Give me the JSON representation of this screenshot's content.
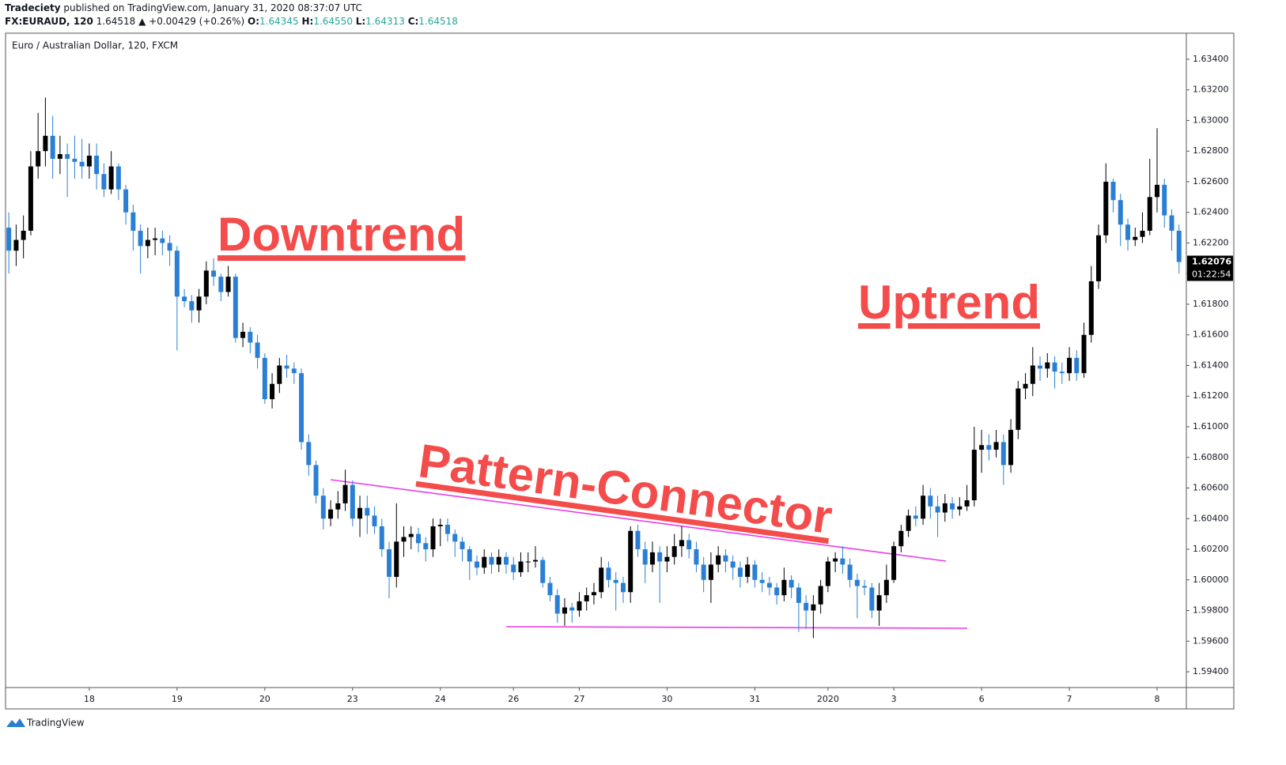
{
  "header": {
    "publisher": "Tradeciety",
    "published_text": "published on TradingView.com, January 31, 2020 08:37:07 UTC",
    "symbol": "FX:EURAUD, 120",
    "last": "1.64518",
    "change": "▲ +0.00429 (+0.26%)",
    "o_label": "O:",
    "o_value": "1.64345",
    "h_label": "H:",
    "h_value": "1.64550",
    "l_label": "L:",
    "l_value": "1.64313",
    "c_label": "C:",
    "c_value": "1.64518"
  },
  "footer": {
    "brand": "TradingView"
  },
  "annotations": {
    "downtrend": "Downtrend",
    "uptrend": "Uptrend",
    "connector": "Pattern-Connector"
  },
  "chart_data": {
    "type": "candlestick",
    "title": "Euro / Australian Dollar, 120, FXCM",
    "up_color": "#000000",
    "down_color": "#2a7fd4",
    "grid": false,
    "last_price_label": "1.62076",
    "countdown": "01:22:54",
    "xlim": [
      -0.45,
      161.0
    ],
    "xticks": [
      {
        "value": 11,
        "label": "18"
      },
      {
        "value": 23,
        "label": "19"
      },
      {
        "value": 35,
        "label": "20"
      },
      {
        "value": 47,
        "label": "23"
      },
      {
        "value": 59,
        "label": "24"
      },
      {
        "value": 69,
        "label": "26"
      },
      {
        "value": 78,
        "label": "27"
      },
      {
        "value": 90,
        "label": "30"
      },
      {
        "value": 102,
        "label": "31"
      },
      {
        "value": 112,
        "label": "2020"
      },
      {
        "value": 121,
        "label": "3"
      },
      {
        "value": 133,
        "label": "6"
      },
      {
        "value": 145,
        "label": "7"
      },
      {
        "value": 157,
        "label": "8"
      }
    ],
    "ylim": [
      1.59297,
      1.6357
    ],
    "yticks": [
      {
        "value": 1.594,
        "label": "1.59400"
      },
      {
        "value": 1.596,
        "label": "1.59600"
      },
      {
        "value": 1.598,
        "label": "1.59800"
      },
      {
        "value": 1.6,
        "label": "1.60000"
      },
      {
        "value": 1.602,
        "label": "1.60200"
      },
      {
        "value": 1.604,
        "label": "1.60400"
      },
      {
        "value": 1.606,
        "label": "1.60600"
      },
      {
        "value": 1.608,
        "label": "1.60800"
      },
      {
        "value": 1.61,
        "label": "1.61000"
      },
      {
        "value": 1.612,
        "label": "1.61200"
      },
      {
        "value": 1.614,
        "label": "1.61400"
      },
      {
        "value": 1.616,
        "label": "1.61600"
      },
      {
        "value": 1.618,
        "label": "1.61800"
      },
      {
        "value": 1.62,
        "label": "1.62000"
      },
      {
        "value": 1.622,
        "label": "1.62200"
      },
      {
        "value": 1.624,
        "label": "1.62400"
      },
      {
        "value": 1.626,
        "label": "1.62600"
      },
      {
        "value": 1.628,
        "label": "1.62800"
      },
      {
        "value": 1.63,
        "label": "1.63000"
      },
      {
        "value": 1.632,
        "label": "1.63200"
      },
      {
        "value": 1.634,
        "label": "1.63400"
      }
    ],
    "ohlc": [
      [
        1.623,
        1.624,
        1.62,
        1.6215
      ],
      [
        1.6215,
        1.6232,
        1.6205,
        1.6222
      ],
      [
        1.6222,
        1.6238,
        1.621,
        1.6228
      ],
      [
        1.6228,
        1.628,
        1.6225,
        1.627
      ],
      [
        1.627,
        1.6305,
        1.6262,
        1.628
      ],
      [
        1.628,
        1.6315,
        1.627,
        1.629
      ],
      [
        1.629,
        1.6303,
        1.6262,
        1.6275
      ],
      [
        1.6275,
        1.629,
        1.6265,
        1.6278
      ],
      [
        1.6278,
        1.6285,
        1.625,
        1.6275
      ],
      [
        1.6275,
        1.629,
        1.6262,
        1.6273
      ],
      [
        1.6273,
        1.6288,
        1.6262,
        1.627
      ],
      [
        1.627,
        1.6285,
        1.6262,
        1.6277
      ],
      [
        1.6277,
        1.6285,
        1.6255,
        1.6265
      ],
      [
        1.6265,
        1.6272,
        1.625,
        1.6255
      ],
      [
        1.6255,
        1.628,
        1.6252,
        1.627
      ],
      [
        1.627,
        1.6272,
        1.6248,
        1.6255
      ],
      [
        1.6255,
        1.6258,
        1.6232,
        1.624
      ],
      [
        1.624,
        1.6245,
        1.6215,
        1.6228
      ],
      [
        1.6228,
        1.6232,
        1.62,
        1.6218
      ],
      [
        1.6218,
        1.623,
        1.621,
        1.6222
      ],
      [
        1.6222,
        1.623,
        1.6212,
        1.6223
      ],
      [
        1.6223,
        1.6228,
        1.6212,
        1.622
      ],
      [
        1.622,
        1.6225,
        1.6205,
        1.6215
      ],
      [
        1.6215,
        1.6218,
        1.615,
        1.6185
      ],
      [
        1.6185,
        1.619,
        1.6178,
        1.6182
      ],
      [
        1.6182,
        1.6186,
        1.6168,
        1.6176
      ],
      [
        1.6176,
        1.619,
        1.6168,
        1.6185
      ],
      [
        1.6185,
        1.6208,
        1.618,
        1.6202
      ],
      [
        1.6202,
        1.621,
        1.6192,
        1.6198
      ],
      [
        1.6198,
        1.62,
        1.6182,
        1.6188
      ],
      [
        1.6188,
        1.6205,
        1.6185,
        1.6198
      ],
      [
        1.6198,
        1.62,
        1.6155,
        1.6158
      ],
      [
        1.6158,
        1.6168,
        1.6152,
        1.6162
      ],
      [
        1.6162,
        1.6165,
        1.6148,
        1.6155
      ],
      [
        1.6155,
        1.616,
        1.6138,
        1.6145
      ],
      [
        1.6145,
        1.6148,
        1.6115,
        1.6118
      ],
      [
        1.6118,
        1.6135,
        1.6112,
        1.6128
      ],
      [
        1.6128,
        1.6145,
        1.6122,
        1.614
      ],
      [
        1.614,
        1.6147,
        1.6132,
        1.6138
      ],
      [
        1.6138,
        1.6142,
        1.6128,
        1.6135
      ],
      [
        1.6135,
        1.6138,
        1.6085,
        1.609
      ],
      [
        1.609,
        1.6095,
        1.6068,
        1.6075
      ],
      [
        1.6075,
        1.6078,
        1.605,
        1.6055
      ],
      [
        1.6055,
        1.606,
        1.6033,
        1.604
      ],
      [
        1.604,
        1.6052,
        1.6035,
        1.6046
      ],
      [
        1.6046,
        1.6058,
        1.604,
        1.605
      ],
      [
        1.605,
        1.6072,
        1.6045,
        1.6062
      ],
      [
        1.6062,
        1.6065,
        1.6035,
        1.604
      ],
      [
        1.604,
        1.6055,
        1.6028,
        1.6047
      ],
      [
        1.6047,
        1.6055,
        1.603,
        1.6042
      ],
      [
        1.6042,
        1.6048,
        1.603,
        1.6035
      ],
      [
        1.6035,
        1.604,
        1.6015,
        1.602
      ],
      [
        1.602,
        1.6025,
        1.5988,
        1.6002
      ],
      [
        1.6002,
        1.605,
        1.5995,
        1.6025
      ],
      [
        1.6025,
        1.6035,
        1.6015,
        1.6028
      ],
      [
        1.6028,
        1.6035,
        1.602,
        1.603
      ],
      [
        1.603,
        1.6034,
        1.6018,
        1.6024
      ],
      [
        1.6024,
        1.6028,
        1.6012,
        1.602
      ],
      [
        1.602,
        1.604,
        1.6015,
        1.6035
      ],
      [
        1.6035,
        1.604,
        1.6022,
        1.6036
      ],
      [
        1.6036,
        1.604,
        1.6025,
        1.603
      ],
      [
        1.603,
        1.6033,
        1.6015,
        1.6025
      ],
      [
        1.6025,
        1.6028,
        1.6012,
        1.602
      ],
      [
        1.602,
        1.6022,
        1.6,
        1.6012
      ],
      [
        1.6012,
        1.6016,
        1.6003,
        1.6008
      ],
      [
        1.6008,
        1.602,
        1.6004,
        1.6015
      ],
      [
        1.6015,
        1.6018,
        1.6004,
        1.601
      ],
      [
        1.601,
        1.602,
        1.6005,
        1.6015
      ],
      [
        1.6015,
        1.6018,
        1.6004,
        1.601
      ],
      [
        1.601,
        1.6015,
        1.6,
        1.6005
      ],
      [
        1.6005,
        1.6018,
        1.6002,
        1.6012
      ],
      [
        1.6012,
        1.6018,
        1.6005,
        1.6012
      ],
      [
        1.6012,
        1.6022,
        1.6008,
        1.6013
      ],
      [
        1.6013,
        1.6015,
        1.5995,
        1.5998
      ],
      [
        1.5998,
        1.6002,
        1.5986,
        1.599
      ],
      [
        1.599,
        1.5994,
        1.5972,
        1.5978
      ],
      [
        1.5978,
        1.5988,
        1.597,
        1.5982
      ],
      [
        1.5982,
        1.5985,
        1.5972,
        1.598
      ],
      [
        1.598,
        1.5992,
        1.5976,
        1.5986
      ],
      [
        1.5986,
        1.5995,
        1.598,
        1.599
      ],
      [
        1.599,
        1.5998,
        1.5984,
        1.5992
      ],
      [
        1.5992,
        1.6015,
        1.5988,
        1.6008
      ],
      [
        1.6008,
        1.6012,
        1.5995,
        1.6
      ],
      [
        1.6,
        1.6005,
        1.598,
        1.5998
      ],
      [
        1.5998,
        1.6002,
        1.5985,
        1.5992
      ],
      [
        1.5992,
        1.6035,
        1.5985,
        1.6032
      ],
      [
        1.6032,
        1.6036,
        1.6015,
        1.602
      ],
      [
        1.602,
        1.6025,
        1.5998,
        1.601
      ],
      [
        1.601,
        1.6025,
        1.6005,
        1.6018
      ],
      [
        1.6018,
        1.6022,
        1.5985,
        1.6012
      ],
      [
        1.6012,
        1.6022,
        1.6005,
        1.6015
      ],
      [
        1.6015,
        1.603,
        1.601,
        1.6022
      ],
      [
        1.6022,
        1.6035,
        1.6015,
        1.6026
      ],
      [
        1.6026,
        1.603,
        1.6014,
        1.602
      ],
      [
        1.602,
        1.6025,
        1.6005,
        1.601
      ],
      [
        1.601,
        1.6015,
        1.5992,
        1.6
      ],
      [
        1.6,
        1.6018,
        1.5985,
        1.601
      ],
      [
        1.601,
        1.6022,
        1.6005,
        1.6016
      ],
      [
        1.6016,
        1.602,
        1.6005,
        1.6012
      ],
      [
        1.6012,
        1.6016,
        1.6,
        1.6008
      ],
      [
        1.6008,
        1.6012,
        1.5995,
        1.6002
      ],
      [
        1.6002,
        1.6015,
        1.5998,
        1.601
      ],
      [
        1.601,
        1.6013,
        1.5995,
        1.6
      ],
      [
        1.6,
        1.6005,
        1.5992,
        1.5998
      ],
      [
        1.5998,
        1.6002,
        1.599,
        1.5995
      ],
      [
        1.5995,
        1.5998,
        1.5984,
        1.599
      ],
      [
        1.599,
        1.6008,
        1.5986,
        1.6
      ],
      [
        1.6,
        1.6003,
        1.5988,
        1.5995
      ],
      [
        1.5995,
        1.5998,
        1.5966,
        1.5985
      ],
      [
        1.5985,
        1.599,
        1.5968,
        1.598
      ],
      [
        1.598,
        1.599,
        1.5962,
        1.5984
      ],
      [
        1.5984,
        1.6,
        1.5978,
        1.5996
      ],
      [
        1.5996,
        1.6015,
        1.5992,
        1.6012
      ],
      [
        1.6012,
        1.6018,
        1.6005,
        1.6014
      ],
      [
        1.6014,
        1.6022,
        1.6004,
        1.601
      ],
      [
        1.601,
        1.6014,
        1.5995,
        1.6
      ],
      [
        1.6,
        1.6004,
        1.5975,
        1.5996
      ],
      [
        1.5996,
        1.6,
        1.599,
        1.5995
      ],
      [
        1.5995,
        1.5998,
        1.5975,
        1.598
      ],
      [
        1.598,
        1.5998,
        1.597,
        1.599
      ],
      [
        1.599,
        1.601,
        1.5985,
        1.6
      ],
      [
        1.6,
        1.6025,
        1.5998,
        1.6022
      ],
      [
        1.6022,
        1.6036,
        1.6018,
        1.6032
      ],
      [
        1.6032,
        1.6046,
        1.6028,
        1.6042
      ],
      [
        1.6042,
        1.6048,
        1.6035,
        1.604
      ],
      [
        1.604,
        1.6062,
        1.6036,
        1.6055
      ],
      [
        1.6055,
        1.606,
        1.604,
        1.6048
      ],
      [
        1.6048,
        1.6055,
        1.6028,
        1.6044
      ],
      [
        1.6044,
        1.6056,
        1.6038,
        1.605
      ],
      [
        1.605,
        1.6054,
        1.604,
        1.6046
      ],
      [
        1.6046,
        1.6054,
        1.6042,
        1.6048
      ],
      [
        1.6048,
        1.6062,
        1.6045,
        1.6052
      ],
      [
        1.6052,
        1.61,
        1.6048,
        1.6085
      ],
      [
        1.6085,
        1.6098,
        1.607,
        1.6088
      ],
      [
        1.6088,
        1.6095,
        1.6078,
        1.6085
      ],
      [
        1.6085,
        1.6098,
        1.608,
        1.609
      ],
      [
        1.609,
        1.6095,
        1.6062,
        1.6075
      ],
      [
        1.6075,
        1.6105,
        1.607,
        1.6098
      ],
      [
        1.6098,
        1.613,
        1.6092,
        1.6125
      ],
      [
        1.6125,
        1.6135,
        1.6118,
        1.6128
      ],
      [
        1.6128,
        1.6152,
        1.612,
        1.614
      ],
      [
        1.614,
        1.6146,
        1.613,
        1.6138
      ],
      [
        1.6138,
        1.6148,
        1.6132,
        1.6142
      ],
      [
        1.6142,
        1.6146,
        1.6125,
        1.6136
      ],
      [
        1.6136,
        1.6142,
        1.6128,
        1.6135
      ],
      [
        1.6135,
        1.6152,
        1.613,
        1.6145
      ],
      [
        1.6145,
        1.615,
        1.613,
        1.6135
      ],
      [
        1.6135,
        1.6168,
        1.6132,
        1.616
      ],
      [
        1.616,
        1.6205,
        1.6155,
        1.6195
      ],
      [
        1.6195,
        1.6232,
        1.619,
        1.6225
      ],
      [
        1.6225,
        1.6272,
        1.622,
        1.626
      ],
      [
        1.626,
        1.6262,
        1.624,
        1.6248
      ],
      [
        1.6248,
        1.6252,
        1.6218,
        1.6232
      ],
      [
        1.6232,
        1.6236,
        1.6215,
        1.6222
      ],
      [
        1.6222,
        1.623,
        1.6218,
        1.6224
      ],
      [
        1.6224,
        1.624,
        1.622,
        1.6228
      ],
      [
        1.6228,
        1.6275,
        1.6225,
        1.625
      ],
      [
        1.625,
        1.6295,
        1.624,
        1.6258
      ],
      [
        1.6258,
        1.6262,
        1.623,
        1.6238
      ],
      [
        1.6238,
        1.6242,
        1.6215,
        1.6228
      ],
      [
        1.6228,
        1.6232,
        1.62,
        1.62076
      ]
    ]
  }
}
